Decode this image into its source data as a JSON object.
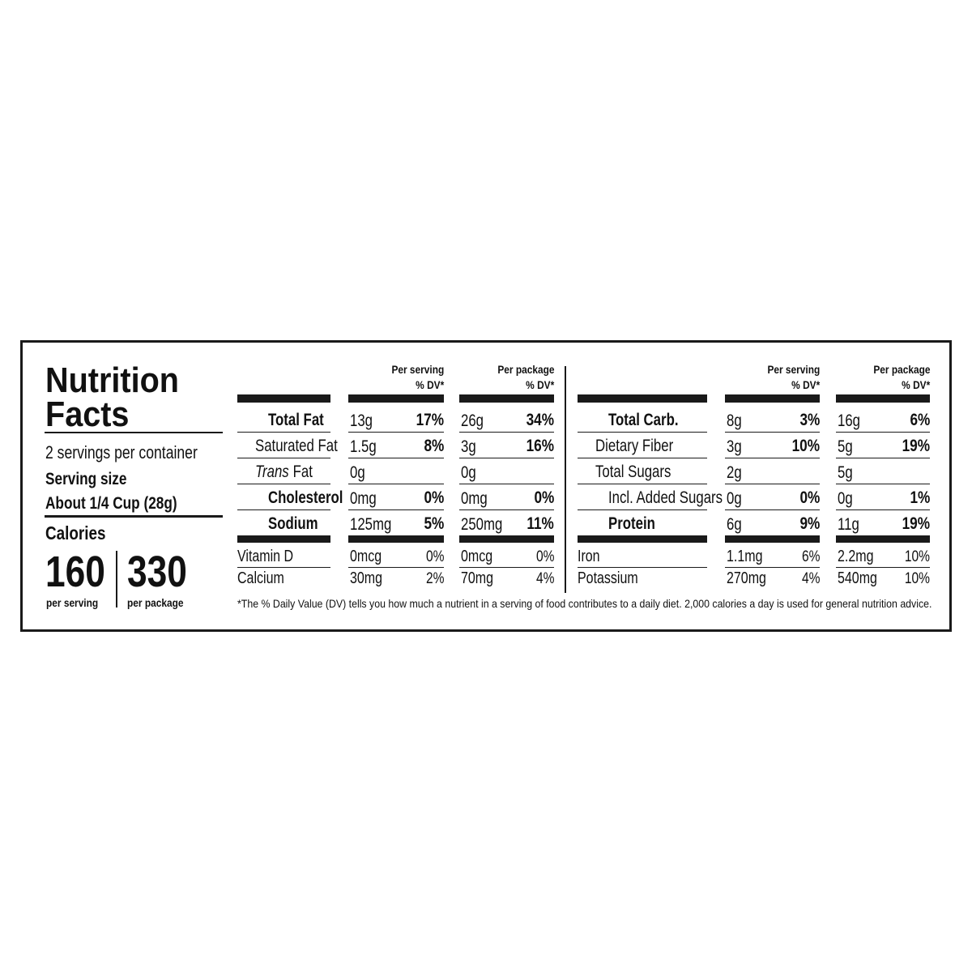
{
  "label": {
    "title_lines": [
      "Nutrition",
      "Facts"
    ],
    "servings_per_container": "2 servings per container",
    "serving_size_label": "Serving size",
    "serving_size": "About 1/4 Cup (28g)",
    "calories": {
      "label": "Calories",
      "values": [
        {
          "amount": 160,
          "basis": "per serving"
        },
        {
          "amount": 330,
          "basis": "per package"
        }
      ]
    },
    "column_headers": [
      {
        "title": "Per serving",
        "dv": "% DV*"
      },
      {
        "title": "Per package",
        "dv": "% DV*"
      }
    ],
    "halves": [
      {
        "rows": [
          {
            "name": "Total Fat",
            "serving": {
              "amount": "13g",
              "dv": "17%"
            },
            "package": {
              "amount": "26g",
              "dv": "34%"
            },
            "sub": [
              {
                "name": "Saturated Fat",
                "serving": {
                  "amount": "1.5g",
                  "dv": "8%"
                },
                "package": {
                  "amount": "3g",
                  "dv": "16%"
                }
              },
              {
                "name_italic": "Trans",
                "name": " Fat",
                "serving": {
                  "amount": "0g"
                },
                "package": {
                  "amount": "0g"
                }
              }
            ]
          },
          {
            "name": "Cholesterol",
            "serving": {
              "amount": "0mg",
              "dv": "0%"
            },
            "package": {
              "amount": "0mg",
              "dv": "0%"
            }
          },
          {
            "name": "Sodium",
            "serving": {
              "amount": "125mg",
              "dv": "5%"
            },
            "package": {
              "amount": "250mg",
              "dv": "11%"
            }
          }
        ],
        "micros": [
          {
            "name": "Vitamin D",
            "serving": {
              "amount": "0mcg",
              "dv": "0%"
            },
            "package": {
              "amount": "0mcg",
              "dv": "0%"
            }
          },
          {
            "name": "Calcium",
            "serving": {
              "amount": "30mg",
              "dv": "2%"
            },
            "package": {
              "amount": "70mg",
              "dv": "4%"
            }
          }
        ]
      },
      {
        "rows": [
          {
            "name": "Total Carb.",
            "serving": {
              "amount": "8g",
              "dv": "3%"
            },
            "package": {
              "amount": "16g",
              "dv": "6%"
            },
            "sub": [
              {
                "name": "Dietary Fiber",
                "serving": {
                  "amount": "3g",
                  "dv": "10%"
                },
                "package": {
                  "amount": "5g",
                  "dv": "19%"
                }
              },
              {
                "name": "Total Sugars",
                "serving": {
                  "amount": "2g"
                },
                "package": {
                  "amount": "5g"
                },
                "sub": [
                  {
                    "name": "Incl. Added Sugars",
                    "serving": {
                      "amount": "0g",
                      "dv": "0%"
                    },
                    "package": {
                      "amount": "0g",
                      "dv": "1%"
                    }
                  }
                ]
              }
            ]
          },
          {
            "name": "Protein",
            "serving": {
              "amount": "6g",
              "dv": "9%"
            },
            "package": {
              "amount": "11g",
              "dv": "19%"
            }
          }
        ],
        "micros": [
          {
            "name": "Iron",
            "serving": {
              "amount": "1.1mg",
              "dv": "6%"
            },
            "package": {
              "amount": "2.2mg",
              "dv": "10%"
            }
          },
          {
            "name": "Potassium",
            "serving": {
              "amount": "270mg",
              "dv": "4%"
            },
            "package": {
              "amount": "540mg",
              "dv": "10%"
            }
          }
        ]
      }
    ],
    "footnote": "*The % Daily Value (DV) tells you how much a nutrient in a serving of food contributes to a daily diet. 2,000 calories a day is used for general nutrition advice."
  }
}
